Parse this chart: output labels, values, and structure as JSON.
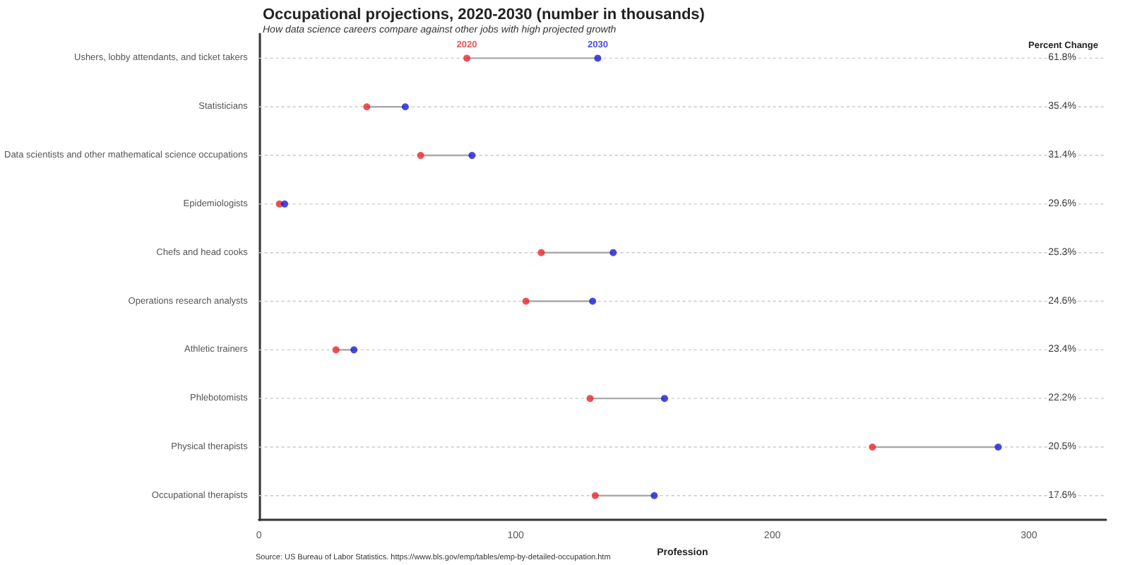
{
  "chart_data": {
    "type": "scatter",
    "title": "Occupational projections, 2020-2030 (number in thousands)",
    "subtitle": "How data science careers compare against other jobs with high projected growth",
    "xlabel": "Profession",
    "categories": [
      "Ushers, lobby attendants, and ticket takers",
      "Statisticians",
      "Data scientists and other mathematical science occupations",
      "Epidemiologists",
      "Chefs and head cooks",
      "Operations research analysts",
      "Athletic trainers",
      "Phlebotomists",
      "Physical therapists",
      "Occupational therapists"
    ],
    "orientation": "horizontal",
    "series": [
      {
        "name": "2020",
        "color": "#e8262a",
        "values": [
          81,
          42,
          63,
          8,
          110,
          104,
          30,
          129,
          239,
          131
        ]
      },
      {
        "name": "2030",
        "color": "#1a1ad6",
        "values": [
          132,
          57,
          83,
          10,
          138,
          130,
          37,
          158,
          288,
          154
        ]
      }
    ],
    "xlim": [
      0,
      330
    ],
    "xticks": [
      0,
      100,
      200,
      300
    ],
    "grid": "y",
    "legend": false,
    "marker": "circle",
    "annotations": [
      "Percent Change",
      "61.8%",
      "35.4%",
      "31.4%",
      "29.6%",
      "25.3%",
      "24.6%",
      "23.4%",
      "22.2%",
      "20.5%",
      "17.6%",
      "Source: US Bureau of Labor Statistics. https://www.bls.gov/emp/tables/emp-by-detailed-occupation.htm"
    ]
  }
}
